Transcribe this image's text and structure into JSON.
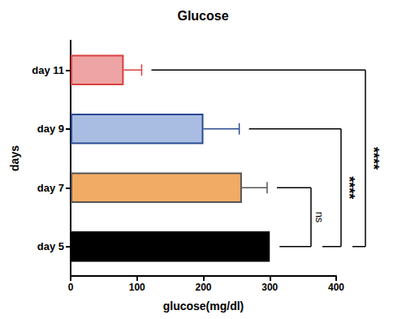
{
  "chart_data": {
    "type": "bar",
    "orientation": "horizontal",
    "title": "Glucose",
    "x_label": "glucose(mg/dl)",
    "y_label": "days",
    "categories": [
      "day 5",
      "day 7",
      "day 9",
      "day 11"
    ],
    "values": [
      300,
      258,
      200,
      80
    ],
    "errors": [
      null,
      38,
      54,
      27
    ],
    "colors": [
      "#000000",
      "#f2ab64",
      "#a9bde3",
      "#eea4a4"
    ],
    "xlim": [
      0,
      400
    ],
    "xticks": [
      0,
      100,
      200,
      300,
      400
    ],
    "grid": false,
    "annotations": [
      {
        "from": "day 7",
        "to": "day 5",
        "label": "ns"
      },
      {
        "from": "day 9",
        "to": "day 5",
        "label": "****"
      },
      {
        "from": "day 11",
        "to": "day 5",
        "label": "****"
      }
    ]
  }
}
